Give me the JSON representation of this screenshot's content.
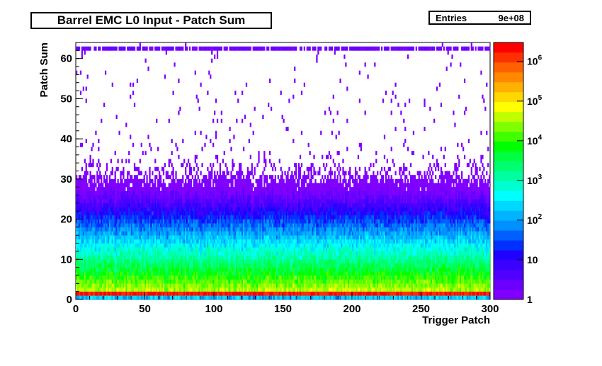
{
  "header": {
    "title": "Barrel EMC L0 Input - Patch Sum",
    "stats_label": "Entries",
    "stats_value": "9e+08"
  },
  "footer": {
    "faded_text": ""
  },
  "chart_data": {
    "type": "heatmap",
    "title": "Barrel EMC L0 Input - Patch Sum",
    "xlabel": "Trigger Patch",
    "ylabel": "Patch Sum",
    "xlim": [
      0,
      300
    ],
    "ylim": [
      0,
      64
    ],
    "x_ticks": [
      0,
      50,
      100,
      150,
      200,
      250,
      300
    ],
    "y_ticks": [
      0,
      10,
      20,
      30,
      40,
      50,
      60
    ],
    "z_scale": "log",
    "z_range": [
      1,
      3000000
    ],
    "z_ticks": [
      {
        "value": 1,
        "label": "1"
      },
      {
        "value": 10,
        "label": "10"
      },
      {
        "value": 100,
        "label": "10^2"
      },
      {
        "value": 1000,
        "label": "10^3"
      },
      {
        "value": 10000,
        "label": "10^4"
      },
      {
        "value": 100000,
        "label": "10^5"
      },
      {
        "value": 1000000,
        "label": "10^6"
      }
    ],
    "n_bins_x": 300,
    "n_bins_y": 64,
    "profile": {
      "row_peak_bin": 1,
      "row_peak_count": 2000000,
      "row0_count": 100,
      "decay_per_bin": 0.66,
      "saturated_top_row": 62
    },
    "palette": [
      "#7f00ff",
      "#6b00ff",
      "#5000ff",
      "#3c00ff",
      "#2000ff",
      "#0030ff",
      "#0060ff",
      "#0090ff",
      "#00b4ff",
      "#00d8ff",
      "#00ffff",
      "#00ffd0",
      "#00ffa0",
      "#00ff70",
      "#00ff40",
      "#00ff00",
      "#40ff00",
      "#80ff00",
      "#c0ff00",
      "#ffff00",
      "#ffd800",
      "#ffb000",
      "#ff8800",
      "#ff6000",
      "#ff3000",
      "#ff0000"
    ],
    "colors": {
      "frame": "#000000",
      "background": "#ffffff"
    }
  }
}
